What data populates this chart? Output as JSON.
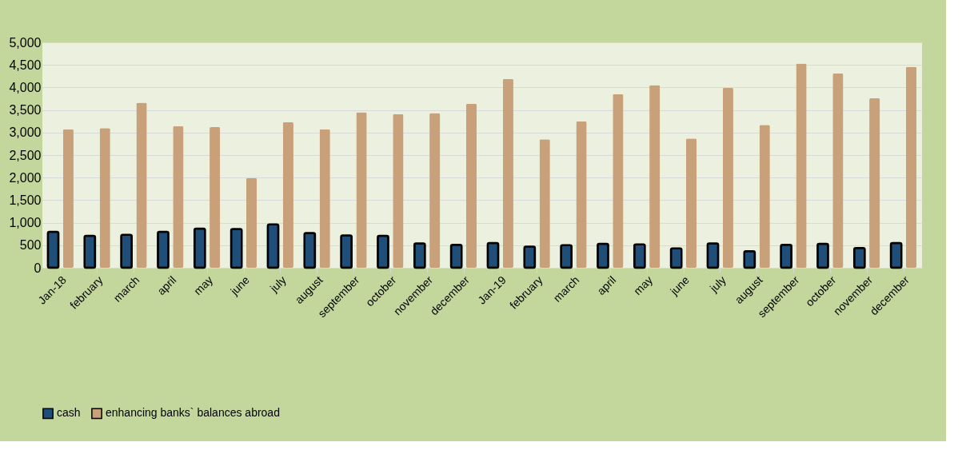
{
  "chart_data": {
    "type": "bar",
    "categories": [
      "Jan-18",
      "february",
      "march",
      "april",
      "may",
      "june",
      "july",
      "august",
      "september",
      "october",
      "november",
      "december",
      "Jan-19",
      "february",
      "march",
      "april",
      "may",
      "june",
      "july",
      "august",
      "september",
      "october",
      "november",
      "december"
    ],
    "series": [
      {
        "name": "cash",
        "color": "#1f4e79",
        "values": [
          800,
          710,
          730,
          800,
          870,
          860,
          960,
          770,
          720,
          710,
          540,
          510,
          550,
          470,
          500,
          530,
          520,
          430,
          540,
          370,
          510,
          530,
          440,
          550
        ]
      },
      {
        "name": "enhancing banks` balances abroad",
        "color": "#c8a07a",
        "values": [
          3070,
          3100,
          3660,
          3140,
          3120,
          1990,
          3230,
          3070,
          3450,
          3410,
          3430,
          3640,
          4190,
          2850,
          3250,
          3850,
          4050,
          2870,
          3990,
          3170,
          4530,
          4310,
          3760,
          4460
        ]
      }
    ],
    "ylim": [
      0,
      5000
    ],
    "yticks": [
      0,
      500,
      {
        "value": 1000,
        "label": "1,000"
      },
      {
        "value": 1500,
        "label": "1,500"
      },
      {
        "value": 2000,
        "label": "2,000"
      },
      {
        "value": 2500,
        "label": "2,500"
      },
      {
        "value": 3000,
        "label": "3,000"
      },
      {
        "value": 3500,
        "label": "3,500"
      },
      {
        "value": 4000,
        "label": "4,000"
      },
      {
        "value": 4500,
        "label": "4,500"
      },
      {
        "value": 5000,
        "label": "5,000"
      }
    ],
    "grid": "y",
    "legend": "bottom"
  }
}
